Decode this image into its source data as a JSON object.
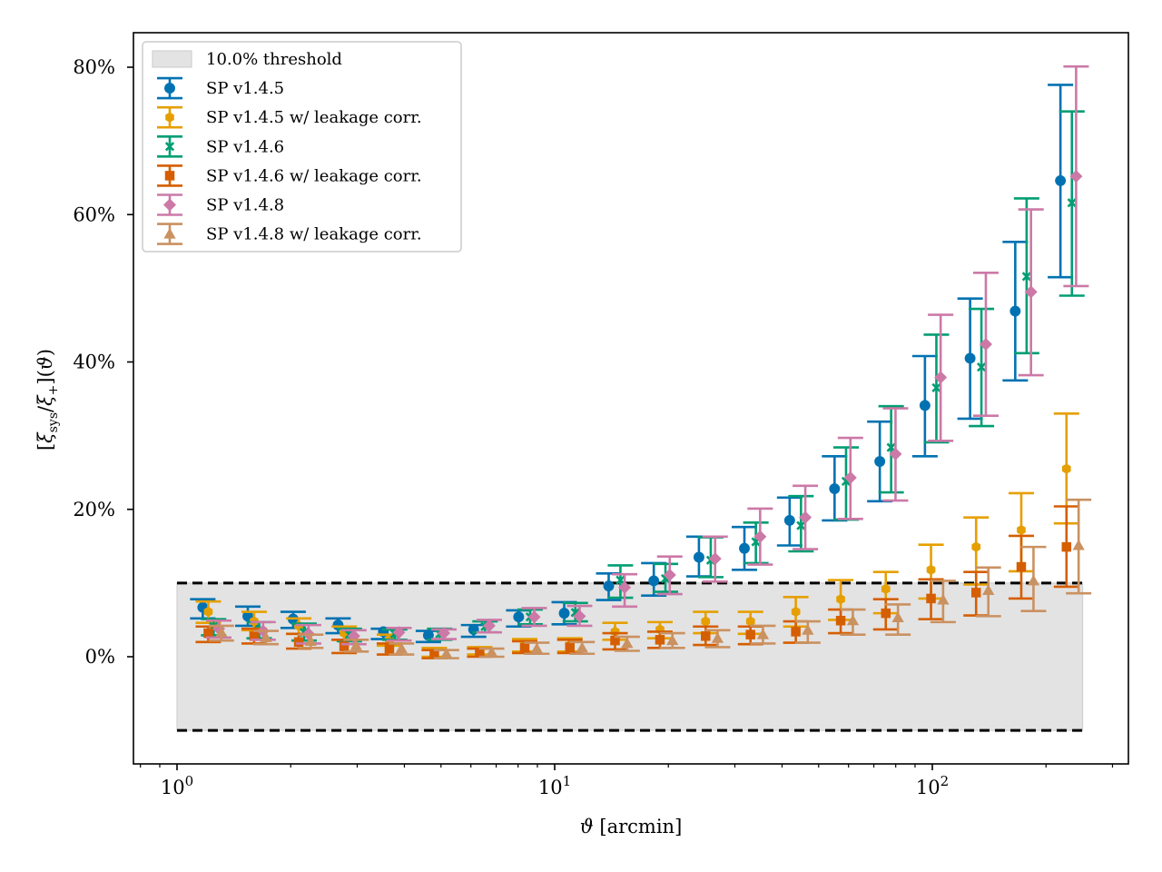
{
  "chart_data": {
    "type": "scatter",
    "title": "",
    "xlabel": "ϑ [arcmin]",
    "ylabel": "[ξ_sys/ξ_+](ϑ)",
    "xscale": "log",
    "xlim": [
      0.8,
      320
    ],
    "ylim": [
      -14.5,
      84.5
    ],
    "x_ticks": [
      {
        "value": 1,
        "label_base": "10",
        "label_exp": "0"
      },
      {
        "value": 10,
        "label_base": "10",
        "label_exp": "1"
      },
      {
        "value": 100,
        "label_base": "10",
        "label_exp": "2"
      }
    ],
    "y_ticks": [
      {
        "value": 0,
        "label": "0%"
      },
      {
        "value": 20,
        "label": "20%"
      },
      {
        "value": 40,
        "label": "40%"
      },
      {
        "value": 60,
        "label": "60%"
      },
      {
        "value": 80,
        "label": "80%"
      }
    ],
    "grid": false,
    "legend_position": "top-left",
    "threshold": {
      "label": "10.0% threshold",
      "value": 10.0,
      "x_range": [
        1.0,
        250.0
      ],
      "color": "#e3e3e3"
    },
    "series": [
      {
        "name": "SP v1.4.5",
        "marker": "circle",
        "color": "#0072b2",
        "x": [
          1.17,
          1.54,
          2.03,
          2.67,
          3.52,
          4.63,
          6.1,
          8.03,
          10.6,
          13.9,
          18.3,
          24.1,
          31.8,
          41.9,
          55.1,
          72.6,
          95.6,
          125.9,
          165.8,
          218.4
        ],
        "y": [
          6.7,
          5.5,
          5.1,
          4.3,
          3.4,
          2.9,
          3.7,
          5.4,
          5.9,
          9.6,
          10.3,
          13.5,
          14.7,
          18.5,
          22.8,
          26.5,
          34.1,
          40.5,
          46.9,
          64.6
        ],
        "yerr_low": [
          1.5,
          1.3,
          1.2,
          1.1,
          1.0,
          0.9,
          1.0,
          1.3,
          1.5,
          1.9,
          2.0,
          2.6,
          2.9,
          3.4,
          4.3,
          5.4,
          6.9,
          8.2,
          9.4,
          13.1
        ],
        "yerr_high": [
          1.1,
          1.3,
          1.0,
          0.9,
          0.4,
          0.6,
          0.6,
          0.9,
          1.5,
          1.7,
          2.4,
          2.8,
          2.9,
          3.1,
          4.4,
          5.4,
          6.7,
          8.1,
          9.4,
          13.0
        ]
      },
      {
        "name": "SP v1.4.5 w/ leakage corr.",
        "marker": "hexagon",
        "color": "#e69f00",
        "x": [
          1.21,
          1.6,
          2.1,
          2.77,
          3.65,
          4.8,
          6.33,
          8.33,
          10.97,
          14.45,
          19.0,
          25.1,
          33.0,
          43.5,
          57.2,
          75.3,
          99.2,
          130.6,
          172.0,
          226.6
        ],
        "y": [
          6.1,
          4.8,
          4.2,
          3.2,
          2.3,
          0.6,
          0.8,
          1.6,
          1.6,
          3.4,
          3.7,
          4.8,
          4.8,
          6.1,
          7.8,
          9.2,
          11.8,
          14.9,
          17.2,
          25.5
        ],
        "yerr_low": [
          1.5,
          1.2,
          1.1,
          0.9,
          0.8,
          0.6,
          0.5,
          0.9,
          0.9,
          1.1,
          1.2,
          1.6,
          1.7,
          2.0,
          2.8,
          3.3,
          3.9,
          5.1,
          5.6,
          7.4
        ],
        "yerr_high": [
          1.4,
          1.3,
          1.0,
          0.9,
          0.7,
          0.6,
          0.5,
          0.8,
          0.9,
          1.2,
          1.0,
          1.3,
          1.3,
          2.0,
          2.6,
          2.3,
          3.4,
          4.0,
          5.0,
          7.5
        ]
      },
      {
        "name": "SP v1.4.6",
        "marker": "x",
        "color": "#009e73",
        "x": [
          1.25,
          1.65,
          2.17,
          2.86,
          3.77,
          4.96,
          6.54,
          8.61,
          11.34,
          14.93,
          19.65,
          25.9,
          34.1,
          44.9,
          59.1,
          77.8,
          102.5,
          134.9,
          177.7,
          234.2
        ],
        "y": [
          4.1,
          3.6,
          3.3,
          3.0,
          3.1,
          3.1,
          4.1,
          5.4,
          6.0,
          10.4,
          10.6,
          13.1,
          15.6,
          17.8,
          23.8,
          28.4,
          36.5,
          39.3,
          51.6,
          61.6
        ],
        "yerr_low": [
          1.2,
          1.1,
          1.1,
          0.9,
          0.8,
          0.8,
          0.8,
          1.0,
          1.2,
          2.4,
          1.8,
          2.3,
          2.9,
          3.5,
          5.2,
          6.1,
          7.4,
          8.0,
          10.4,
          12.6
        ],
        "yerr_high": [
          1.0,
          1.1,
          1.2,
          0.8,
          0.6,
          0.7,
          0.7,
          1.0,
          1.3,
          2.0,
          2.0,
          3.1,
          2.6,
          4.0,
          4.6,
          5.6,
          7.2,
          7.9,
          10.6,
          12.4
        ]
      },
      {
        "name": "SP v1.4.6 w/ leakage corr.",
        "marker": "square",
        "color": "#d55e00",
        "x": [
          1.21,
          1.6,
          2.1,
          2.77,
          3.65,
          4.8,
          6.33,
          8.33,
          10.97,
          14.45,
          19.0,
          25.1,
          33.0,
          43.5,
          57.2,
          75.3,
          99.2,
          130.6,
          172.0,
          226.6
        ],
        "y": [
          3.2,
          2.8,
          2.0,
          1.4,
          1.1,
          0.4,
          0.6,
          1.2,
          1.3,
          2.2,
          2.3,
          2.8,
          3.0,
          3.4,
          4.9,
          5.9,
          7.9,
          8.7,
          12.2,
          14.9
        ],
        "yerr_low": [
          1.2,
          1.0,
          0.9,
          0.9,
          0.8,
          0.6,
          0.6,
          0.7,
          0.8,
          1.2,
          1.1,
          1.2,
          1.3,
          1.5,
          1.7,
          2.2,
          2.8,
          3.1,
          4.3,
          5.4
        ],
        "yerr_high": [
          0.9,
          1.0,
          1.1,
          0.9,
          0.7,
          0.5,
          0.5,
          0.9,
          1.0,
          1.0,
          1.1,
          1.3,
          1.1,
          1.4,
          1.5,
          1.9,
          2.6,
          2.8,
          4.2,
          5.5
        ]
      },
      {
        "name": "SP v1.4.8",
        "marker": "diamond",
        "color": "#cc79a7",
        "x": [
          1.29,
          1.69,
          2.23,
          2.94,
          3.87,
          5.09,
          6.71,
          8.83,
          11.64,
          15.32,
          20.17,
          26.6,
          35.0,
          46.1,
          60.7,
          79.9,
          105.2,
          138.6,
          182.5,
          240.3
        ],
        "y": [
          3.8,
          3.5,
          3.1,
          2.8,
          3.3,
          3.2,
          4.2,
          5.4,
          5.5,
          9.4,
          11.1,
          13.3,
          16.3,
          18.9,
          24.3,
          27.5,
          37.9,
          42.4,
          49.5,
          65.2
        ],
        "yerr_low": [
          1.2,
          1.2,
          1.3,
          1.1,
          1.1,
          0.8,
          0.9,
          1.2,
          1.3,
          2.6,
          2.6,
          3.1,
          3.8,
          4.3,
          5.6,
          6.3,
          8.6,
          9.7,
          11.3,
          14.9
        ],
        "yerr_high": [
          1.1,
          1.2,
          1.2,
          0.8,
          0.6,
          0.5,
          0.8,
          1.2,
          1.4,
          1.8,
          2.5,
          3.0,
          3.8,
          4.3,
          5.4,
          6.2,
          8.5,
          9.7,
          11.2,
          14.9
        ]
      },
      {
        "name": "SP v1.4.8 w/ leakage corr.",
        "marker": "triangle-up",
        "color": "#ca9161",
        "x": [
          1.31,
          1.72,
          2.26,
          2.98,
          3.93,
          5.17,
          6.81,
          8.97,
          11.82,
          15.56,
          20.5,
          27.0,
          35.6,
          46.8,
          61.6,
          81.1,
          106.8,
          140.7,
          185.3,
          244.0
        ],
        "y": [
          3.3,
          2.6,
          2.1,
          1.5,
          1.1,
          0.4,
          0.6,
          1.1,
          1.2,
          1.8,
          2.2,
          2.5,
          3.0,
          3.6,
          4.9,
          5.3,
          7.7,
          9.0,
          10.3,
          15.1
        ],
        "yerr_low": [
          1.1,
          0.9,
          0.9,
          0.8,
          0.8,
          0.6,
          0.6,
          0.7,
          0.8,
          1.0,
          1.0,
          1.2,
          1.2,
          1.7,
          1.9,
          2.3,
          3.0,
          3.5,
          4.1,
          6.5
        ],
        "yerr_high": [
          0.9,
          0.9,
          0.9,
          0.8,
          0.7,
          0.5,
          0.5,
          0.8,
          0.8,
          0.9,
          1.0,
          1.1,
          1.2,
          1.2,
          1.5,
          1.8,
          2.6,
          3.1,
          4.6,
          6.2
        ]
      }
    ]
  }
}
